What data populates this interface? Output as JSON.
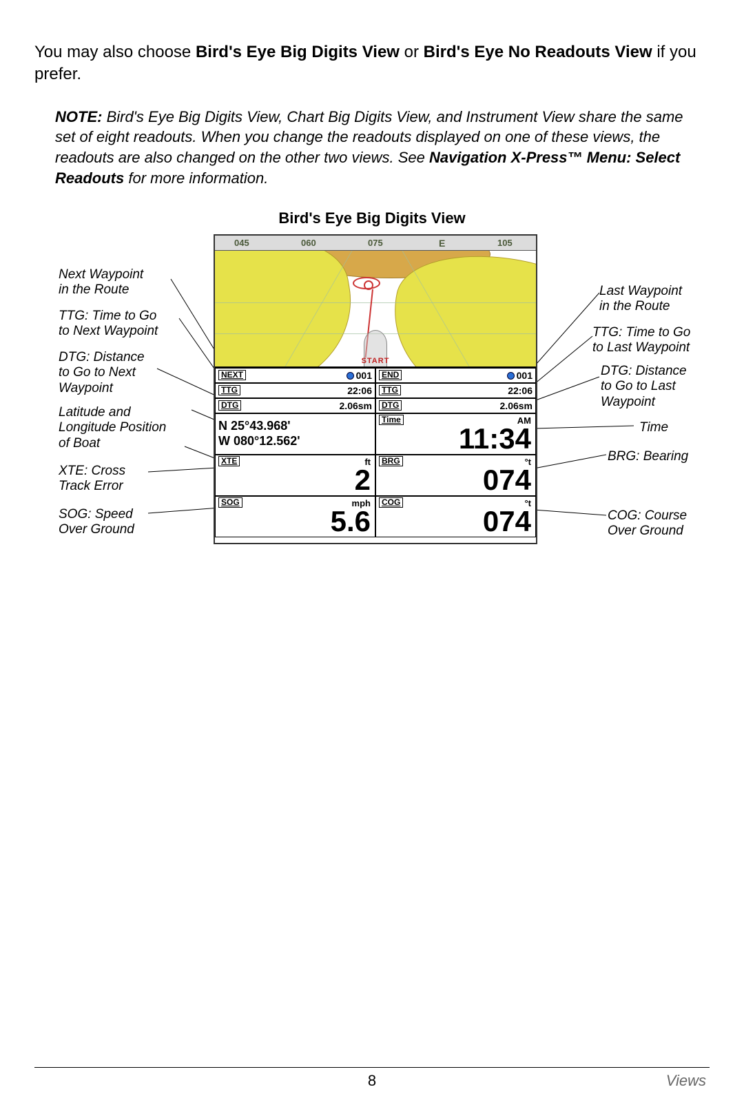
{
  "intro": {
    "pre": "You may also choose ",
    "bold1": "Bird's Eye Big Digits View",
    "mid": " or ",
    "bold2": "Bird's Eye No Readouts View",
    "post": " if you prefer."
  },
  "note": {
    "label": "NOTE:",
    "body1": " Bird's Eye Big Digits View, Chart Big Digits View, and Instrument View share the same set of eight readouts. When you change the readouts displayed on one of these views, the readouts are also changed on the other two views. See ",
    "bold": "Navigation X-Press™ Menu: Select Readouts",
    "body2": " for more information."
  },
  "figTitle": "Bird's Eye Big Digits View",
  "compass": {
    "t1": "045",
    "t2": "060",
    "t3": "075",
    "t4": "E",
    "t5": "105"
  },
  "map": {
    "start": "START"
  },
  "readouts": {
    "next_lbl": "NEXT",
    "next_val": "001",
    "end_lbl": "END",
    "end_val": "001",
    "ttg_lbl": "TTG",
    "ttg_l": "22:06",
    "ttg_r": "22:06",
    "dtg_lbl": "DTG",
    "dtg_l": "2.06sm",
    "dtg_r": "2.06sm",
    "lat": "N 25°43.968'",
    "lon": "W 080°12.562'",
    "time_lbl": "Time",
    "time_unit": "AM",
    "time_val": "11:34",
    "xte_lbl": "XTE",
    "xte_unit": "ft",
    "xte_val": "2",
    "brg_lbl": "BRG",
    "brg_unit": "°t",
    "brg_val": "074",
    "sog_lbl": "SOG",
    "sog_unit": "mph",
    "sog_val": "5.6",
    "cog_lbl": "COG",
    "cog_unit": "°t",
    "cog_val": "074"
  },
  "callouts": {
    "l1": "Next Waypoint\nin the Route",
    "l2": "TTG: Time to Go\nto Next Waypoint",
    "l3": "DTG: Distance\nto Go to Next\nWaypoint",
    "l4": "Latitude and\nLongitude Position\nof Boat",
    "l5": "XTE: Cross\nTrack Error",
    "l6": "SOG: Speed\nOver Ground",
    "r1": "Last Waypoint\nin the Route",
    "r2": "TTG: Time to Go\nto Last Waypoint",
    "r3": "DTG: Distance\nto Go to Last\nWaypoint",
    "r4": "Time",
    "r5": "BRG: Bearing",
    "r6": "COG: Course\nOver Ground"
  },
  "pageNumber": "8",
  "footerSection": "Views",
  "style": {
    "land_color": "#e6e24a",
    "deep_color": "#d7a84a",
    "device_border": "#333333",
    "big_digit_color": "#000000"
  }
}
